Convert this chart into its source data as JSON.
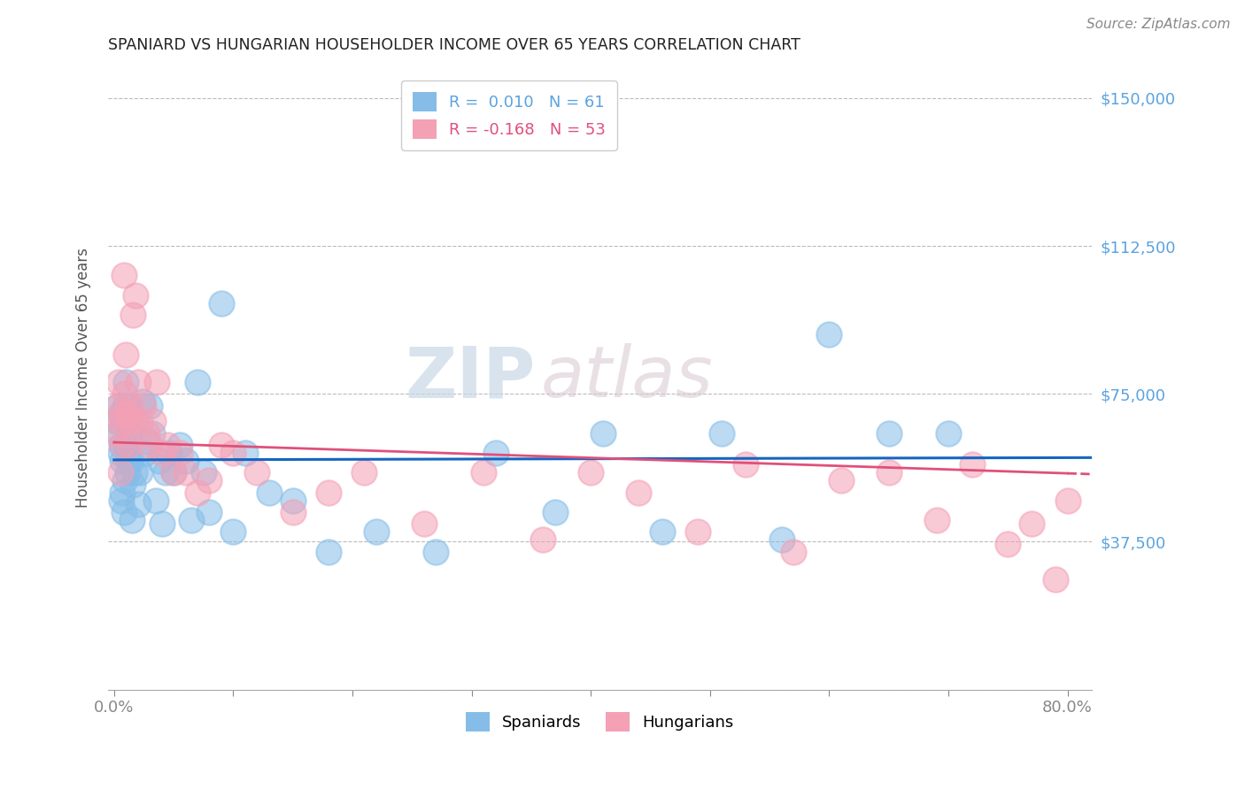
{
  "title": "SPANIARD VS HUNGARIAN HOUSEHOLDER INCOME OVER 65 YEARS CORRELATION CHART",
  "source": "Source: ZipAtlas.com",
  "ylabel": "Householder Income Over 65 years",
  "ytick_vals": [
    0,
    37500,
    75000,
    112500,
    150000
  ],
  "ytick_labels": [
    "",
    "$37,500",
    "$75,000",
    "$112,500",
    "$150,000"
  ],
  "xtick_vals": [
    0.0,
    0.1,
    0.2,
    0.3,
    0.4,
    0.5,
    0.6,
    0.7,
    0.8
  ],
  "xtick_labels_show": [
    "0.0%",
    "",
    "",
    "",
    "",
    "",
    "",
    "",
    "80.0%"
  ],
  "ylim": [
    0,
    158000
  ],
  "xlim": [
    -0.005,
    0.82
  ],
  "R_spaniard": 0.01,
  "N_spaniard": 61,
  "R_hungarian": -0.168,
  "N_hungarian": 53,
  "color_spaniard": "#85bde8",
  "color_hungarian": "#f4a0b5",
  "line_color_spaniard": "#1565c0",
  "line_color_hungarian": "#e0507a",
  "watermark_zip": "ZIP",
  "watermark_atlas": "atlas",
  "spaniard_x": [
    0.002,
    0.003,
    0.004,
    0.005,
    0.005,
    0.006,
    0.006,
    0.007,
    0.007,
    0.008,
    0.008,
    0.009,
    0.009,
    0.01,
    0.01,
    0.011,
    0.011,
    0.012,
    0.013,
    0.013,
    0.014,
    0.015,
    0.016,
    0.017,
    0.018,
    0.02,
    0.022,
    0.024,
    0.026,
    0.028,
    0.03,
    0.032,
    0.035,
    0.038,
    0.04,
    0.043,
    0.046,
    0.05,
    0.055,
    0.06,
    0.065,
    0.07,
    0.075,
    0.08,
    0.09,
    0.1,
    0.11,
    0.13,
    0.15,
    0.18,
    0.22,
    0.27,
    0.32,
    0.37,
    0.41,
    0.46,
    0.51,
    0.56,
    0.6,
    0.65,
    0.7
  ],
  "spaniard_y": [
    68000,
    72000,
    65000,
    70000,
    60000,
    62000,
    48000,
    50000,
    58000,
    45000,
    68000,
    53000,
    72000,
    78000,
    62000,
    55000,
    68000,
    58000,
    65000,
    72000,
    58000,
    43000,
    52000,
    55000,
    68000,
    47000,
    55000,
    73000,
    60000,
    63000,
    72000,
    65000,
    48000,
    58000,
    42000,
    55000,
    60000,
    55000,
    62000,
    58000,
    43000,
    78000,
    55000,
    45000,
    98000,
    40000,
    60000,
    50000,
    48000,
    35000,
    40000,
    35000,
    60000,
    45000,
    65000,
    40000,
    65000,
    38000,
    90000,
    65000,
    65000
  ],
  "hungarian_x": [
    0.002,
    0.003,
    0.004,
    0.005,
    0.005,
    0.006,
    0.007,
    0.008,
    0.009,
    0.01,
    0.011,
    0.012,
    0.013,
    0.014,
    0.015,
    0.016,
    0.018,
    0.02,
    0.022,
    0.025,
    0.028,
    0.03,
    0.033,
    0.036,
    0.04,
    0.045,
    0.05,
    0.055,
    0.06,
    0.07,
    0.08,
    0.09,
    0.1,
    0.12,
    0.15,
    0.18,
    0.21,
    0.26,
    0.31,
    0.36,
    0.4,
    0.44,
    0.49,
    0.53,
    0.57,
    0.61,
    0.65,
    0.69,
    0.72,
    0.75,
    0.77,
    0.79,
    0.8
  ],
  "hungarian_y": [
    65000,
    72000,
    78000,
    68000,
    55000,
    70000,
    62000,
    105000,
    75000,
    85000,
    70000,
    68000,
    62000,
    72000,
    68000,
    95000,
    100000,
    78000,
    68000,
    72000,
    65000,
    62000,
    68000,
    78000,
    60000,
    62000,
    55000,
    60000,
    55000,
    50000,
    53000,
    62000,
    60000,
    55000,
    45000,
    50000,
    55000,
    42000,
    55000,
    38000,
    55000,
    50000,
    40000,
    57000,
    35000,
    53000,
    55000,
    43000,
    57000,
    37000,
    42000,
    28000,
    48000
  ]
}
